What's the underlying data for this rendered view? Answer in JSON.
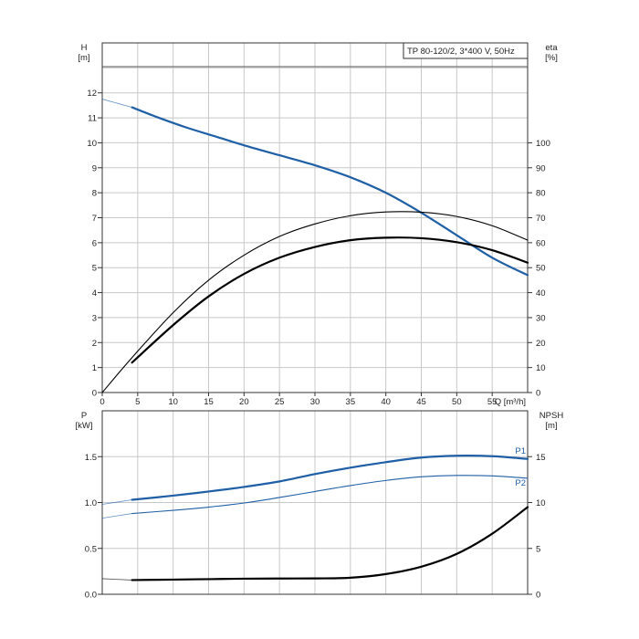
{
  "chart_data": [
    {
      "type": "line",
      "title": "TP 80-120/2, 3*400 V, 50Hz",
      "xlabel": "Q [m³/h]",
      "ylabel_left": [
        "H",
        "[m]"
      ],
      "ylabel_right": [
        "eta",
        "[%]"
      ],
      "xlim": [
        0,
        60
      ],
      "ylim_left": [
        0,
        14
      ],
      "ylim_right": [
        0,
        140
      ],
      "x_ticks": [
        "0",
        "5",
        "10",
        "15",
        "20",
        "25",
        "30",
        "35",
        "40",
        "45",
        "50",
        "55"
      ],
      "y_ticks_left": [
        "0",
        "1",
        "2",
        "3",
        "4",
        "5",
        "6",
        "7",
        "8",
        "9",
        "10",
        "11",
        "12"
      ],
      "y_ticks_right": [
        "0",
        "10",
        "20",
        "30",
        "40",
        "50",
        "60",
        "70",
        "80",
        "90",
        "100"
      ],
      "grid": true,
      "series": [
        {
          "axis": "left",
          "color": "#1f5fa6",
          "style": "thick",
          "x_extension": [
            0,
            4.2
          ],
          "y_extension": [
            11.75,
            11.42
          ],
          "x": [
            4.2,
            8,
            12,
            16,
            20,
            25,
            30,
            35,
            40,
            45,
            50,
            55,
            60
          ],
          "y": [
            11.42,
            11.0,
            10.6,
            10.25,
            9.9,
            9.5,
            9.1,
            8.62,
            8.0,
            7.2,
            6.3,
            5.4,
            4.7
          ]
        },
        {
          "axis": "right",
          "color": "#000000",
          "style": "thin",
          "x": [
            0,
            4.2,
            10,
            15,
            20,
            25,
            30,
            35,
            40,
            45,
            50,
            55,
            60
          ],
          "y": [
            0,
            14,
            32,
            45,
            55,
            62.5,
            67.5,
            70.8,
            72.3,
            72.2,
            70.5,
            66.8,
            61
          ]
        },
        {
          "axis": "right",
          "color": "#000000",
          "style": "thick",
          "x": [
            4.2,
            10,
            15,
            20,
            25,
            30,
            35,
            40,
            45,
            50,
            55,
            60
          ],
          "y": [
            12,
            27,
            38.5,
            47.5,
            54,
            58.3,
            61,
            62,
            61.8,
            60.2,
            57,
            52
          ]
        }
      ]
    },
    {
      "type": "line",
      "ylabel_left": [
        "P",
        "[kW]"
      ],
      "ylabel_right": [
        "NPSH",
        "[m]"
      ],
      "xlim": [
        0,
        60
      ],
      "ylim_left": [
        0,
        2.0
      ],
      "ylim_right": [
        0,
        20
      ],
      "y_ticks_left": [
        "0.0",
        "0.5",
        "1.0",
        "1.5"
      ],
      "y_ticks_right": [
        "0",
        "5",
        "10",
        "15"
      ],
      "grid": true,
      "series": [
        {
          "name": "P1",
          "axis": "left",
          "color": "#1f5fa6",
          "style": "thick",
          "x_extension": [
            0,
            4.2
          ],
          "y_extension": [
            0.98,
            1.03
          ],
          "x": [
            4.2,
            10,
            15,
            20,
            25,
            30,
            35,
            40,
            45,
            50,
            55,
            60
          ],
          "y": [
            1.03,
            1.075,
            1.12,
            1.17,
            1.23,
            1.31,
            1.38,
            1.44,
            1.49,
            1.51,
            1.505,
            1.475
          ]
        },
        {
          "name": "P2",
          "axis": "left",
          "color": "#1f5fa6",
          "style": "thin",
          "x_extension": [
            0,
            4.2
          ],
          "y_extension": [
            0.83,
            0.88
          ],
          "x": [
            4.2,
            10,
            15,
            20,
            25,
            30,
            35,
            40,
            45,
            50,
            55,
            60
          ],
          "y": [
            0.88,
            0.915,
            0.95,
            0.995,
            1.055,
            1.12,
            1.185,
            1.24,
            1.28,
            1.295,
            1.29,
            1.265
          ]
        },
        {
          "axis": "right",
          "color": "#000000",
          "style": "thick",
          "x_extension": [
            0,
            4.2
          ],
          "y_extension": [
            1.7,
            1.55
          ],
          "x": [
            4.2,
            10,
            15,
            20,
            25,
            30,
            35,
            40,
            45,
            50,
            55,
            60
          ],
          "y": [
            1.55,
            1.6,
            1.65,
            1.7,
            1.72,
            1.73,
            1.8,
            2.2,
            3.0,
            4.4,
            6.6,
            9.5
          ]
        }
      ]
    }
  ]
}
